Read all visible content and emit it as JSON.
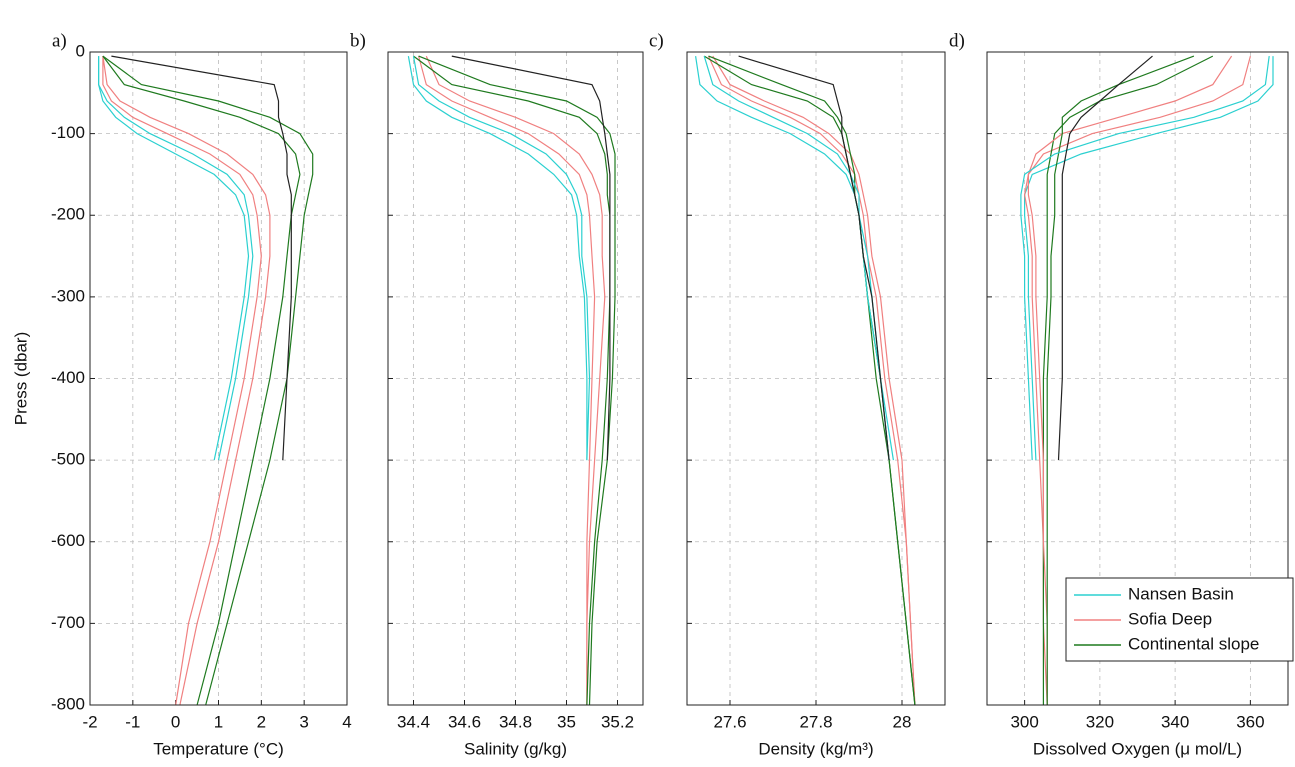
{
  "chart_data": [
    {
      "type": "line",
      "panel": "a)",
      "xlabel": "Temperature (°C)",
      "ylabel": "Press (dbar)",
      "show_ytick_labels": true,
      "xlim": [
        -2,
        4
      ],
      "xticks": [
        -2,
        -1,
        0,
        1,
        2,
        3,
        4
      ],
      "ylim": [
        -800,
        0
      ],
      "yticks": [
        0,
        -100,
        -200,
        -300,
        -400,
        -500,
        -600,
        -700,
        -800
      ],
      "grid": true,
      "y": [
        -5,
        -40,
        -60,
        -80,
        -100,
        -125,
        -150,
        -175,
        -200,
        -250,
        -300,
        -400,
        -500,
        -600,
        -700,
        -800
      ],
      "series": [
        {
          "color": "#f08080",
          "values": [
            -1.7,
            -1.7,
            -1.5,
            -1.0,
            -0.2,
            0.8,
            1.5,
            1.8,
            1.9,
            2.0,
            1.9,
            1.6,
            1.2,
            0.8,
            0.3,
            0.0
          ]
        },
        {
          "color": "#f08080",
          "values": [
            -1.7,
            -1.6,
            -1.3,
            -0.6,
            0.3,
            1.2,
            1.8,
            2.1,
            2.2,
            2.2,
            2.1,
            1.8,
            1.4,
            1.0,
            0.5,
            0.1
          ]
        },
        {
          "color": "#1f7a1f",
          "values": [
            -1.7,
            -1.2,
            0.2,
            1.5,
            2.4,
            2.8,
            2.9,
            2.8,
            2.7,
            2.6,
            2.5,
            2.2,
            1.8,
            1.4,
            1.0,
            0.5
          ]
        },
        {
          "color": "#1f7a1f",
          "values": [
            -1.7,
            -0.8,
            1.0,
            2.2,
            2.9,
            3.2,
            3.2,
            3.1,
            3.0,
            2.9,
            2.8,
            2.6,
            2.2,
            1.7,
            1.2,
            0.7
          ]
        },
        {
          "color": "#2bd0d0",
          "values": [
            -1.8,
            -1.8,
            -1.7,
            -1.4,
            -0.9,
            0.0,
            0.9,
            1.4,
            1.6,
            1.7,
            1.6,
            1.3,
            0.9,
            null,
            null,
            null
          ]
        },
        {
          "color": "#2bd0d0",
          "values": [
            -1.8,
            -1.8,
            -1.6,
            -1.2,
            -0.6,
            0.4,
            1.2,
            1.6,
            1.7,
            1.8,
            1.7,
            1.4,
            1.0,
            null,
            null,
            null
          ]
        },
        {
          "color": "#222222",
          "values": [
            -1.5,
            2.3,
            2.4,
            2.4,
            2.5,
            2.6,
            2.6,
            2.7,
            2.7,
            2.7,
            2.7,
            2.6,
            2.5,
            null,
            null,
            null
          ]
        }
      ]
    },
    {
      "type": "line",
      "panel": "b)",
      "xlabel": "Salinity (g/kg)",
      "show_ytick_labels": false,
      "xlim": [
        34.3,
        35.3
      ],
      "xticks": [
        34.4,
        34.6,
        34.8,
        35,
        35.2
      ],
      "ylim": [
        -800,
        0
      ],
      "yticks": [
        0,
        -100,
        -200,
        -300,
        -400,
        -500,
        -600,
        -700,
        -800
      ],
      "grid": true,
      "y": [
        -5,
        -40,
        -60,
        -80,
        -100,
        -125,
        -150,
        -175,
        -200,
        -250,
        -300,
        -400,
        -500,
        -600,
        -700,
        -800
      ],
      "series": [
        {
          "color": "#f08080",
          "values": [
            34.42,
            34.45,
            34.55,
            34.7,
            34.85,
            34.97,
            35.05,
            35.08,
            35.09,
            35.1,
            35.11,
            35.1,
            35.09,
            35.08,
            35.08,
            35.08
          ]
        },
        {
          "color": "#f08080",
          "values": [
            34.45,
            34.5,
            34.62,
            34.8,
            34.95,
            35.05,
            35.1,
            35.13,
            35.14,
            35.14,
            35.15,
            35.13,
            35.11,
            35.09,
            35.08,
            35.08
          ]
        },
        {
          "color": "#1f7a1f",
          "values": [
            34.4,
            34.55,
            34.85,
            35.05,
            35.12,
            35.15,
            35.16,
            35.16,
            35.17,
            35.17,
            35.17,
            35.16,
            35.14,
            35.11,
            35.09,
            35.08
          ]
        },
        {
          "color": "#1f7a1f",
          "values": [
            34.42,
            34.7,
            35.0,
            35.12,
            35.17,
            35.19,
            35.19,
            35.19,
            35.19,
            35.19,
            35.19,
            35.18,
            35.16,
            35.12,
            35.1,
            35.09
          ]
        },
        {
          "color": "#2bd0d0",
          "values": [
            34.38,
            34.4,
            34.45,
            34.55,
            34.7,
            34.85,
            34.95,
            35.02,
            35.04,
            35.05,
            35.07,
            35.08,
            35.08,
            null,
            null,
            null
          ]
        },
        {
          "color": "#2bd0d0",
          "values": [
            34.4,
            34.42,
            34.5,
            34.62,
            34.78,
            34.92,
            35.0,
            35.04,
            35.06,
            35.06,
            35.08,
            35.09,
            35.08,
            null,
            null,
            null
          ]
        },
        {
          "color": "#222222",
          "values": [
            34.55,
            35.1,
            35.13,
            35.14,
            35.15,
            35.16,
            35.17,
            35.17,
            35.17,
            35.17,
            35.17,
            35.17,
            35.16,
            null,
            null,
            null
          ]
        }
      ]
    },
    {
      "type": "line",
      "panel": "c)",
      "xlabel": "Density (kg/m³)",
      "show_ytick_labels": false,
      "xlim": [
        27.5,
        28.1
      ],
      "xticks": [
        27.6,
        27.8,
        28
      ],
      "ylim": [
        -800,
        0
      ],
      "yticks": [
        0,
        -100,
        -200,
        -300,
        -400,
        -500,
        -600,
        -700,
        -800
      ],
      "grid": true,
      "y": [
        -5,
        -40,
        -60,
        -80,
        -100,
        -125,
        -150,
        -175,
        -200,
        -250,
        -300,
        -400,
        -500,
        -600,
        -700,
        -800
      ],
      "series": [
        {
          "color": "#f08080",
          "values": [
            27.55,
            27.58,
            27.65,
            27.74,
            27.81,
            27.86,
            27.89,
            27.9,
            27.91,
            27.92,
            27.94,
            27.96,
            27.99,
            28.01,
            28.02,
            28.03
          ]
        },
        {
          "color": "#f08080",
          "values": [
            27.56,
            27.6,
            27.68,
            27.77,
            27.83,
            27.88,
            27.9,
            27.91,
            27.92,
            27.93,
            27.95,
            27.97,
            28.0,
            28.01,
            28.02,
            28.03
          ]
        },
        {
          "color": "#1f7a1f",
          "values": [
            27.54,
            27.65,
            27.78,
            27.84,
            27.86,
            27.87,
            27.88,
            27.89,
            27.9,
            27.91,
            27.92,
            27.95,
            27.97,
            27.99,
            28.01,
            28.03
          ]
        },
        {
          "color": "#1f7a1f",
          "values": [
            27.55,
            27.72,
            27.82,
            27.85,
            27.87,
            27.88,
            27.89,
            27.89,
            27.9,
            27.91,
            27.92,
            27.94,
            27.97,
            27.99,
            28.01,
            28.03
          ]
        },
        {
          "color": "#2bd0d0",
          "values": [
            27.52,
            27.53,
            27.57,
            27.65,
            27.74,
            27.82,
            27.87,
            27.89,
            27.9,
            27.91,
            27.92,
            27.95,
            27.97,
            null,
            null,
            null
          ]
        },
        {
          "color": "#2bd0d0",
          "values": [
            27.54,
            27.56,
            27.62,
            27.7,
            27.78,
            27.85,
            27.88,
            27.9,
            27.9,
            27.92,
            27.93,
            27.95,
            27.98,
            null,
            null,
            null
          ]
        },
        {
          "color": "#222222",
          "values": [
            27.62,
            27.84,
            27.85,
            27.86,
            27.86,
            27.87,
            27.88,
            27.89,
            27.9,
            27.91,
            27.93,
            27.95,
            27.97,
            null,
            null,
            null
          ]
        }
      ]
    },
    {
      "type": "line",
      "panel": "d)",
      "xlabel": "Dissolved Oxygen (μ mol/L)",
      "show_ytick_labels": false,
      "legend": "lower right",
      "xlim": [
        290,
        370
      ],
      "xticks": [
        300,
        320,
        340,
        360
      ],
      "ylim": [
        -800,
        0
      ],
      "yticks": [
        0,
        -100,
        -200,
        -300,
        -400,
        -500,
        -600,
        -700,
        -800
      ],
      "grid": true,
      "y": [
        -5,
        -40,
        -60,
        -80,
        -100,
        -125,
        -150,
        -175,
        -200,
        -250,
        -300,
        -400,
        -500,
        -600,
        -700,
        -800
      ],
      "series": [
        {
          "name": "Nansen Basin",
          "color": "#2bd0d0",
          "values": [
            366,
            366,
            362,
            352,
            335,
            315,
            302,
            300,
            300,
            301,
            301,
            302,
            303,
            null,
            null,
            null
          ]
        },
        {
          "name": "Sofia Deep",
          "color": "#f08080",
          "values": [
            360,
            358,
            350,
            336,
            318,
            305,
            301,
            300,
            301,
            302,
            302,
            303,
            304,
            305,
            305,
            306
          ]
        },
        {
          "name": "Continental slope",
          "color": "#1f7a1f",
          "values": [
            350,
            335,
            320,
            312,
            308,
            307,
            306,
            306,
            306,
            306,
            306,
            305,
            305,
            305,
            305,
            305
          ]
        },
        {
          "color": "#f08080",
          "values": [
            355,
            350,
            340,
            325,
            310,
            303,
            301,
            301,
            302,
            303,
            303,
            304,
            305,
            305,
            306,
            306
          ]
        },
        {
          "color": "#1f7a1f",
          "values": [
            345,
            325,
            315,
            310,
            310,
            309,
            308,
            308,
            308,
            307,
            307,
            306,
            306,
            306,
            306,
            306
          ]
        },
        {
          "color": "#2bd0d0",
          "values": [
            365,
            364,
            358,
            345,
            325,
            308,
            300,
            299,
            299,
            300,
            300,
            301,
            302,
            null,
            null,
            null
          ]
        },
        {
          "color": "#222222",
          "values": [
            334,
            325,
            320,
            315,
            312,
            311,
            310,
            310,
            310,
            310,
            310,
            310,
            309,
            null,
            null,
            null
          ]
        }
      ]
    }
  ]
}
